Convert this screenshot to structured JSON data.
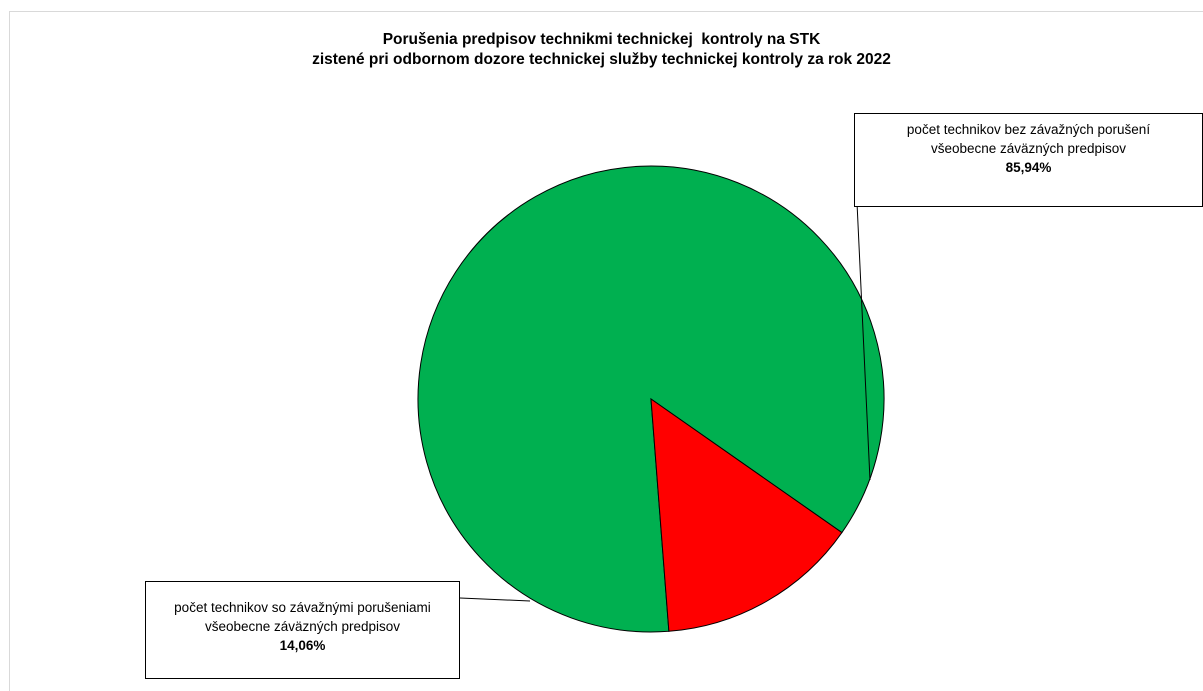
{
  "chart_data": {
    "type": "pie",
    "title_line1": "Porušenia predpisov technikmi technickej  kontroly na STK",
    "title_line2": "zistené pri odbornom dozore technickej služby technickej kontroly za rok 2022",
    "slices": [
      {
        "label_line1": "počet technikov bez  závažných porušení",
        "label_line2": "všeobecne záväzných predpisov",
        "value": 85.94,
        "value_label": "85,94%",
        "color": "#00b050"
      },
      {
        "label_line1": "počet technikov so závažnými porušeniami",
        "label_line2": "všeobecne záväzných predpisov",
        "value": 14.06,
        "value_label": "14,06%",
        "color": "#ff0000"
      }
    ],
    "legend": "none",
    "data_labels": "callouts"
  }
}
